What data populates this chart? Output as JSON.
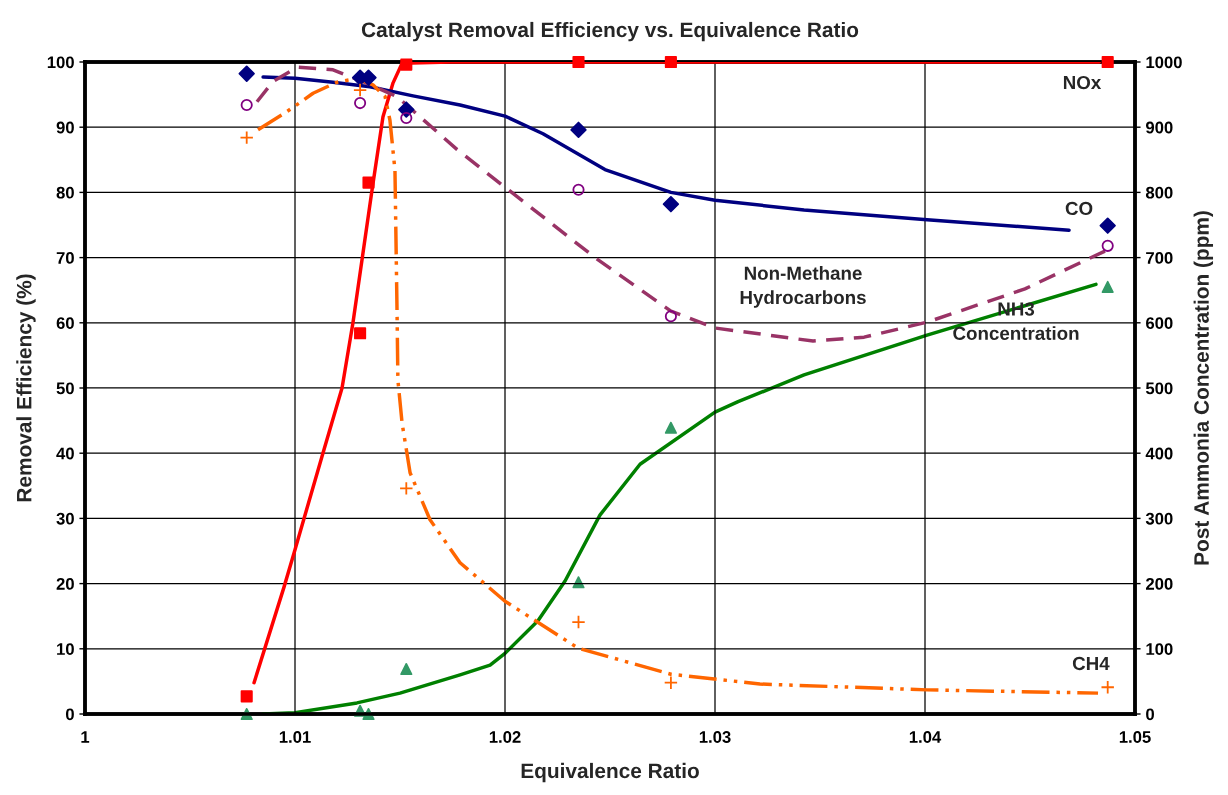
{
  "chart_data": {
    "type": "scatter",
    "title": "Catalyst Removal Efficiency vs. Equivalence Ratio",
    "xlabel": "Equivalence Ratio",
    "ylabel": "Removal Efficiency (%)",
    "y2label": "Post Ammonia Concentration (ppm)",
    "xlim": [
      1,
      1.05
    ],
    "xticks": [
      1,
      1.01,
      1.02,
      1.03,
      1.04,
      1.05
    ],
    "ylim": [
      0,
      100
    ],
    "yticks": [
      0,
      10,
      20,
      30,
      40,
      50,
      60,
      70,
      80,
      90,
      100
    ],
    "y2lim": [
      0,
      1000
    ],
    "y2ticks": [
      0,
      100,
      200,
      300,
      400,
      500,
      600,
      700,
      800,
      900,
      1000
    ],
    "grid": true,
    "series": [
      {
        "marker": "diamond",
        "color": "#000080",
        "x": [
          1.0077,
          1.0131,
          1.0135,
          1.0153,
          1.0235,
          1.0279,
          1.0487
        ],
        "values": [
          98.2,
          97.6,
          97.6,
          92.7,
          89.6,
          78.2,
          74.9
        ]
      },
      {
        "marker": "circle",
        "color": "#800080",
        "x": [
          1.0077,
          1.0131,
          1.0153,
          1.0235,
          1.0279,
          1.0487
        ],
        "values": [
          93.4,
          93.7,
          91.4,
          80.4,
          61.0,
          71.8
        ]
      },
      {
        "marker": "cross",
        "color": "#ff6600",
        "x": [
          1.0077,
          1.0131,
          1.0153,
          1.0235,
          1.0279,
          1.0487
        ],
        "values": [
          88.4,
          95.7,
          34.6,
          14.1,
          4.8,
          4.1
        ]
      },
      {
        "marker": "square",
        "color": "#ff0000",
        "x": [
          1.0077,
          1.0131,
          1.0135,
          1.0153,
          1.0235,
          1.0279,
          1.0487
        ],
        "values": [
          2.7,
          58.4,
          81.5,
          99.6,
          100,
          100,
          100
        ]
      },
      {
        "marker": "triangle",
        "color": "#339966",
        "axis": "y2",
        "x": [
          1.0077,
          1.0131,
          1.0135,
          1.0153,
          1.0235,
          1.0279,
          1.0487
        ],
        "values": [
          0,
          5,
          0,
          69,
          202,
          439,
          655
        ]
      },
      {
        "type": "line",
        "line_style": "solid",
        "color": "#ff0000",
        "x": [
          1.00805,
          1.00948,
          1.01,
          1.01133,
          1.01224,
          1.01276,
          1.01367,
          1.01419,
          1.01467,
          1.0151,
          1.0174,
          1.0483
        ],
        "values": [
          4.8,
          19.5,
          25.2,
          40,
          50,
          60,
          80.4,
          91.6,
          96.8,
          99.8,
          100,
          100
        ]
      },
      {
        "type": "line",
        "line_style": "solid",
        "color": "#000080",
        "x": [
          1.00848,
          1.01,
          1.01181,
          1.01357,
          1.01562,
          1.01786,
          1.02,
          1.02181,
          1.02476,
          1.0279,
          1.03,
          1.03424,
          1.0401,
          1.04686
        ],
        "values": [
          97.7,
          97.5,
          96.9,
          96.2,
          94.8,
          93.4,
          91.7,
          89.0,
          83.5,
          80.0,
          78.8,
          77.3,
          75.8,
          74.2
        ]
      },
      {
        "type": "line",
        "line_style": "dashed",
        "color": "#993366",
        "x": [
          1.00819,
          1.00895,
          1.0101,
          1.01181,
          1.01324,
          1.01486,
          1.01771,
          1.02,
          1.02433,
          1.0279,
          1.03,
          1.03467,
          1.0371,
          1.0401,
          1.04476,
          1.04857
        ],
        "values": [
          93.9,
          97.0,
          99.2,
          98.8,
          97.0,
          94.7,
          86.6,
          80.8,
          69.9,
          61.8,
          59.2,
          57.2,
          57.8,
          60.1,
          65.2,
          71.0
        ]
      },
      {
        "type": "line",
        "line_style": "dashdotdot",
        "color": "#ff6600",
        "x": [
          1.00824,
          1.00962,
          1.01086,
          1.012,
          1.013,
          1.01371,
          1.01429,
          1.01452,
          1.01476,
          1.01486,
          1.0149,
          1.0151,
          1.01548,
          1.01643,
          1.01786,
          1.02,
          1.02348,
          1.0279,
          1.03214,
          1.0401,
          1.04824
        ],
        "values": [
          89.6,
          92.4,
          95.2,
          96.9,
          97.5,
          96.5,
          94.7,
          91.1,
          83.4,
          61.5,
          51.2,
          44.6,
          37.0,
          29.8,
          23.2,
          17.3,
          10.1,
          6.1,
          4.6,
          3.7,
          3.2
        ]
      },
      {
        "type": "line",
        "line_style": "solid",
        "color": "#008000",
        "axis": "y2",
        "x": [
          1.00848,
          1.01,
          1.01295,
          1.015,
          1.01786,
          1.01929,
          1.02,
          1.02157,
          1.02286,
          1.02452,
          1.02643,
          1.03,
          1.0311,
          1.03424,
          1.0401,
          1.04814
        ],
        "values": [
          0,
          2,
          17,
          32,
          60,
          75,
          93,
          143,
          204,
          305,
          383,
          463,
          479,
          520,
          581,
          659
        ]
      }
    ],
    "annotations": [
      "NOx",
      "CO",
      "Non-Methane\nHydrocarbons",
      "NH3\nConcentration",
      "CH4"
    ]
  }
}
